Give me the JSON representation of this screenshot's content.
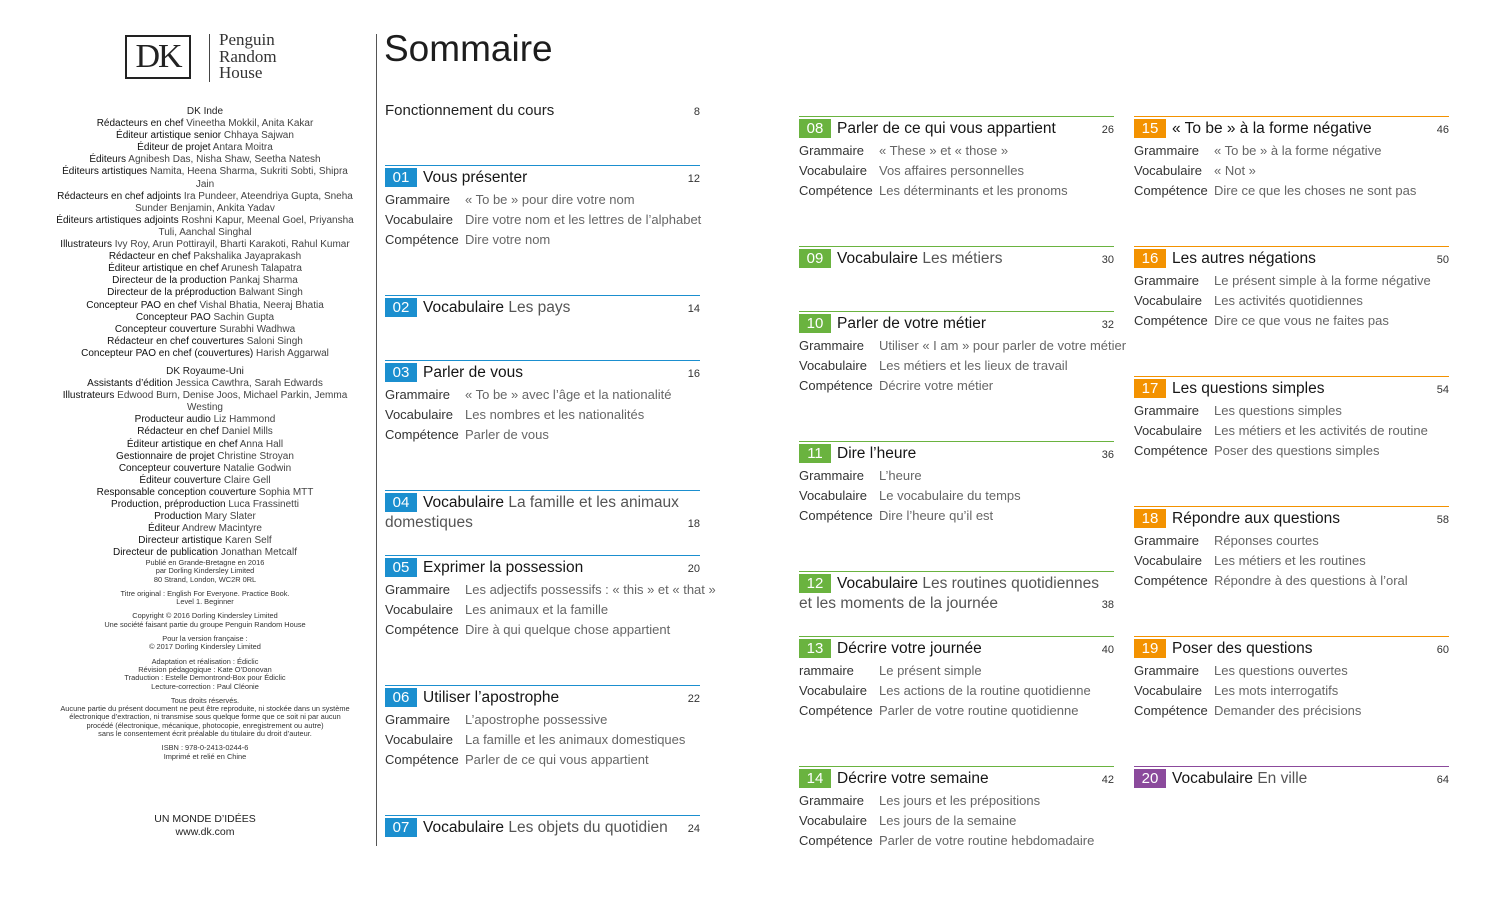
{
  "logo": {
    "mark": "DK",
    "publisher": [
      "Penguin",
      "Random",
      "House"
    ]
  },
  "credits": [
    {
      "heading": "DK Inde",
      "entries": [
        {
          "role": "Rédacteurs en chef",
          "names": "Vineetha Mokkil, Anita Kakar"
        },
        {
          "role": "Éditeur artistique senior",
          "names": "Chhaya Sajwan"
        },
        {
          "role": "Éditeur de projet",
          "names": "Antara Moitra"
        },
        {
          "role": "Éditeurs",
          "names": "Agnibesh Das, Nisha Shaw, Seetha Natesh"
        },
        {
          "role": "Éditeurs artistiques",
          "names": "Namita, Heena Sharma, Sukriti Sobti, Shipra Jain"
        },
        {
          "role": "Rédacteurs en chef adjoints",
          "names": "Ira Pundeer, Ateendriya Gupta, Sneha Sunder Benjamin, Ankita Yadav"
        },
        {
          "role": "Éditeurs artistiques adjoints",
          "names": "Roshni Kapur, Meenal Goel, Priyansha Tuli, Aanchal Singhal"
        },
        {
          "role": "Illustrateurs",
          "names": "Ivy Roy, Arun Pottirayil, Bharti Karakoti, Rahul Kumar"
        },
        {
          "role": "Rédacteur en chef",
          "names": "Pakshalika Jayaprakash"
        },
        {
          "role": "Éditeur artistique en chef",
          "names": "Arunesh Talapatra"
        },
        {
          "role": "Directeur de la production",
          "names": "Pankaj Sharma"
        },
        {
          "role": "Directeur de la préproduction",
          "names": "Balwant Singh"
        },
        {
          "role": "Concepteur PAO en chef",
          "names": "Vishal Bhatia, Neeraj Bhatia"
        },
        {
          "role": "Concepteur PAO",
          "names": "Sachin Gupta"
        },
        {
          "role": "Concepteur couverture",
          "names": "Surabhi Wadhwa"
        },
        {
          "role": "Rédacteur en chef couvertures",
          "names": "Saloni Singh"
        },
        {
          "role": "Concepteur PAO en chef (couvertures)",
          "names": "Harish Aggarwal"
        }
      ]
    },
    {
      "heading": "DK Royaume-Uni",
      "entries": [
        {
          "role": "Assistants d’édition",
          "names": "Jessica Cawthra, Sarah Edwards"
        },
        {
          "role": "Illustrateurs",
          "names": "Edwood Burn, Denise Joos, Michael Parkin, Jemma Westing"
        },
        {
          "role": "Producteur audio",
          "names": "Liz Hammond"
        },
        {
          "role": "Rédacteur en chef",
          "names": "Daniel Mills"
        },
        {
          "role": "Éditeur artistique en chef",
          "names": "Anna Hall"
        },
        {
          "role": "Gestionnaire de projet",
          "names": "Christine Stroyan"
        },
        {
          "role": "Concepteur couverture",
          "names": "Natalie Godwin"
        },
        {
          "role": "Éditeur couverture",
          "names": "Claire Gell"
        },
        {
          "role": "Responsable conception couverture",
          "names": "Sophia MTT"
        },
        {
          "role": "Production, préproduction",
          "names": "Luca Frassinetti"
        },
        {
          "role": "Production",
          "names": "Mary Slater"
        },
        {
          "role": "Éditeur",
          "names": "Andrew Macintyre"
        },
        {
          "role": "Directeur artistique",
          "names": "Karen Self"
        },
        {
          "role": "Directeur de publication",
          "names": "Jonathan Metcalf"
        }
      ]
    }
  ],
  "imprint": [
    [
      "Publié en Grande-Bretagne en 2016",
      "par Dorling Kindersley Limited",
      "80 Strand, London, WC2R 0RL"
    ],
    [
      "Titre original : English For Everyone. Practice Book.",
      "Level 1. Beginner"
    ],
    [
      "Copyright © 2016 Dorling Kindersley Limited",
      "Une société faisant partie du groupe Penguin Random House"
    ],
    [
      "Pour la version française :",
      "© 2017 Dorling Kindersley Limited"
    ],
    [
      "Adaptation et réalisation : Édiclic",
      "Révision pédagogique : Kate O’Donovan",
      "Traduction : Estelle Demontrond-Box pour Édiclic",
      "Lecture-correction : Paul Cléonie"
    ],
    [
      "Tous droits réservés.",
      "Aucune partie du présent document ne peut être reproduite, ni stockée dans un système",
      "électronique d’extraction, ni transmise sous quelque forme que ce soit ni par aucun",
      "procédé (électronique, mécanique, photocopie, enregistrement ou autre)",
      "sans le consentement écrit préalable du titulaire du droit d’auteur."
    ],
    [
      "ISBN : 978-0-2413-0244-6",
      "Imprimé et relié en Chine"
    ]
  ],
  "footer": [
    "UN MONDE D’IDÉES",
    "www.dk.com"
  ],
  "title": "Sommaire",
  "intro": {
    "title": "Fonctionnement du cours",
    "page": "8"
  },
  "columns": [
    [
      {
        "number": "01",
        "color": "#1b8fcf",
        "title": "Vous présenter",
        "page": "12",
        "rows": [
          {
            "label": "Grammaire",
            "text": "« To be » pour dire votre nom"
          },
          {
            "label": "Vocabulaire",
            "text": "Dire votre nom et les lettres de l’alphabet"
          },
          {
            "label": "Compétence",
            "text": "Dire votre nom"
          }
        ]
      },
      {
        "number": "02",
        "color": "#1b8fcf",
        "title": "Vocabulaire",
        "subtitle": "Les pays",
        "page": "14"
      },
      {
        "number": "03",
        "color": "#1b8fcf",
        "title": "Parler de vous",
        "page": "16",
        "rows": [
          {
            "label": "Grammaire",
            "text": "« To be » avec l’âge et la nationalité"
          },
          {
            "label": "Vocabulaire",
            "text": "Les nombres et les nationalités"
          },
          {
            "label": "Compétence",
            "text": "Parler de vous"
          }
        ]
      },
      {
        "number": "04",
        "color": "#1b8fcf",
        "title": "Vocabulaire",
        "subtitle": "La famille et les animaux domestiques",
        "page": "18"
      },
      {
        "number": "05",
        "color": "#1b8fcf",
        "title": "Exprimer la possession",
        "page": "20",
        "rows": [
          {
            "label": "Grammaire",
            "text": "Les adjectifs possessifs : « this » et « that »"
          },
          {
            "label": "Vocabulaire",
            "text": "Les animaux et la famille"
          },
          {
            "label": "Compétence",
            "text": "Dire à qui quelque chose appartient"
          }
        ]
      },
      {
        "number": "06",
        "color": "#1b8fcf",
        "title": "Utiliser l’apostrophe",
        "page": "22",
        "rows": [
          {
            "label": "Grammaire",
            "text": "L’apostrophe possessive"
          },
          {
            "label": "Vocabulaire",
            "text": "La famille et les animaux domestiques"
          },
          {
            "label": "Compétence",
            "text": "Parler de ce qui vous appartient"
          }
        ]
      },
      {
        "number": "07",
        "color": "#1b8fcf",
        "title": "Vocabulaire",
        "subtitle": "Les objets du quotidien",
        "page": "24"
      }
    ],
    [
      {
        "number": "08",
        "color": "#6ab33f",
        "title": "Parler de ce qui vous appartient",
        "page": "26",
        "rows": [
          {
            "label": "Grammaire",
            "text": "« These » et « those »"
          },
          {
            "label": "Vocabulaire",
            "text": "Vos affaires personnelles"
          },
          {
            "label": "Compétence",
            "text": "Les déterminants et les pronoms"
          }
        ]
      },
      {
        "number": "09",
        "color": "#6ab33f",
        "title": "Vocabulaire",
        "subtitle": "Les métiers",
        "page": "30"
      },
      {
        "number": "10",
        "color": "#6ab33f",
        "title": "Parler de votre métier",
        "page": "32",
        "rows": [
          {
            "label": "Grammaire",
            "text": "Utiliser « I am » pour parler de votre métier"
          },
          {
            "label": "Vocabulaire",
            "text": "Les métiers et les lieux de travail"
          },
          {
            "label": "Compétence",
            "text": "Décrire votre métier"
          }
        ]
      },
      {
        "number": "11",
        "color": "#6ab33f",
        "title": "Dire l’heure",
        "page": "36",
        "rows": [
          {
            "label": "Grammaire",
            "text": "L’heure"
          },
          {
            "label": "Vocabulaire",
            "text": "Le vocabulaire du temps"
          },
          {
            "label": "Compétence",
            "text": "Dire l’heure qu’il est"
          }
        ]
      },
      {
        "number": "12",
        "color": "#6ab33f",
        "title": "Vocabulaire",
        "subtitle": "Les routines quotidiennes et les moments de la journée",
        "page": "38"
      },
      {
        "number": "13",
        "color": "#6ab33f",
        "title": "Décrire votre journée",
        "page": "40",
        "rows": [
          {
            "label": "rammaire",
            "text": "Le présent simple"
          },
          {
            "label": "Vocabulaire",
            "text": "Les actions de la routine quotidienne"
          },
          {
            "label": "Compétence",
            "text": "Parler de votre routine quotidienne"
          }
        ]
      },
      {
        "number": "14",
        "color": "#6ab33f",
        "title": "Décrire votre semaine",
        "page": "42",
        "rows": [
          {
            "label": "Grammaire",
            "text": "Les jours et les prépositions"
          },
          {
            "label": "Vocabulaire",
            "text": "Les jours de la semaine"
          },
          {
            "label": "Compétence",
            "text": "Parler de votre routine hebdomadaire"
          }
        ]
      }
    ],
    [
      {
        "number": "15",
        "color": "#f39200",
        "title": "« To be » à la forme négative",
        "page": "46",
        "rows": [
          {
            "label": "Grammaire",
            "text": "« To be » à la forme négative"
          },
          {
            "label": "Vocabulaire",
            "text": "« Not »"
          },
          {
            "label": "Compétence",
            "text": "Dire ce que les choses ne sont pas"
          }
        ]
      },
      {
        "number": "16",
        "color": "#f39200",
        "title": "Les autres négations",
        "page": "50",
        "rows": [
          {
            "label": "Grammaire",
            "text": "Le présent simple à la forme négative"
          },
          {
            "label": "Vocabulaire",
            "text": "Les activités quotidiennes"
          },
          {
            "label": "Compétence",
            "text": "Dire ce que vous ne faites pas"
          }
        ]
      },
      {
        "number": "17",
        "color": "#f39200",
        "title": "Les questions simples",
        "page": "54",
        "rows": [
          {
            "label": "Grammaire",
            "text": "Les questions simples"
          },
          {
            "label": "Vocabulaire",
            "text": "Les métiers et les activités de routine"
          },
          {
            "label": "Compétence",
            "text": "Poser des questions simples"
          }
        ]
      },
      {
        "number": "18",
        "color": "#f39200",
        "title": "Répondre aux questions",
        "page": "58",
        "rows": [
          {
            "label": "Grammaire",
            "text": "Réponses courtes"
          },
          {
            "label": "Vocabulaire",
            "text": "Les métiers et les routines"
          },
          {
            "label": "Compétence",
            "text": "Répondre à des questions à l’oral"
          }
        ]
      },
      {
        "number": "19",
        "color": "#f39200",
        "title": "Poser des questions",
        "page": "60",
        "rows": [
          {
            "label": "Grammaire",
            "text": "Les questions ouvertes"
          },
          {
            "label": "Vocabulaire",
            "text": "Les mots interrogatifs"
          },
          {
            "label": "Compétence",
            "text": "Demander des précisions"
          }
        ]
      },
      {
        "number": "20",
        "color": "#8b4a9c",
        "title": "Vocabulaire",
        "subtitle": "En ville",
        "page": "64"
      }
    ]
  ]
}
